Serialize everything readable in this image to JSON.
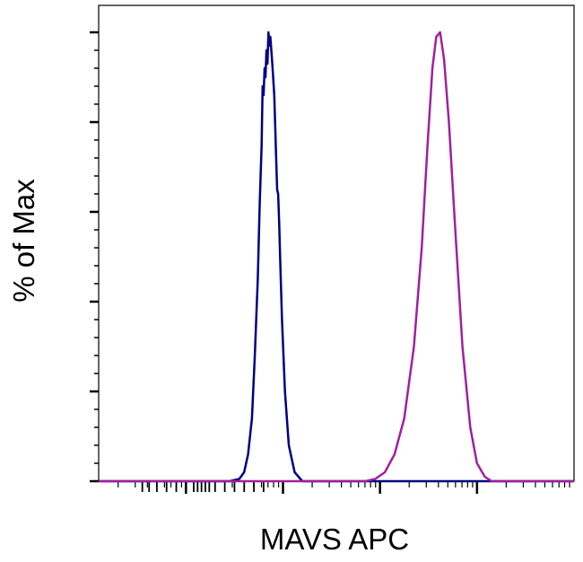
{
  "chart_data": {
    "type": "line",
    "title": "",
    "xlabel": "MAVS APC",
    "ylabel": "% of Max",
    "x_scale": "log",
    "ylim": [
      0,
      100
    ],
    "tick_labels_shown": false,
    "series": [
      {
        "color": "#000080",
        "peak_log10": 1.85,
        "points": [
          [
            0.1,
            0
          ],
          [
            1.45,
            0
          ],
          [
            1.55,
            0.5
          ],
          [
            1.6,
            2
          ],
          [
            1.64,
            6
          ],
          [
            1.68,
            14
          ],
          [
            1.71,
            28
          ],
          [
            1.74,
            45
          ],
          [
            1.76,
            62
          ],
          [
            1.78,
            75
          ],
          [
            1.79,
            88
          ],
          [
            1.8,
            86
          ],
          [
            1.81,
            92
          ],
          [
            1.82,
            90
          ],
          [
            1.83,
            96
          ],
          [
            1.84,
            93
          ],
          [
            1.85,
            100
          ],
          [
            1.86,
            97
          ],
          [
            1.87,
            99
          ],
          [
            1.89,
            93
          ],
          [
            1.91,
            86
          ],
          [
            1.93,
            72
          ],
          [
            1.94,
            65
          ],
          [
            1.95,
            64
          ],
          [
            1.96,
            58
          ],
          [
            1.97,
            50
          ],
          [
            1.99,
            36
          ],
          [
            2.02,
            20
          ],
          [
            2.06,
            8
          ],
          [
            2.12,
            2
          ],
          [
            2.2,
            0
          ],
          [
            5.0,
            0
          ]
        ]
      },
      {
        "color": "#A020A0",
        "peak_log10": 3.6,
        "points": [
          [
            0.1,
            0
          ],
          [
            2.85,
            0
          ],
          [
            2.95,
            0.5
          ],
          [
            3.05,
            2
          ],
          [
            3.15,
            6
          ],
          [
            3.25,
            14
          ],
          [
            3.35,
            30
          ],
          [
            3.43,
            52
          ],
          [
            3.49,
            75
          ],
          [
            3.54,
            92
          ],
          [
            3.58,
            99
          ],
          [
            3.62,
            100
          ],
          [
            3.66,
            94
          ],
          [
            3.71,
            80
          ],
          [
            3.77,
            58
          ],
          [
            3.85,
            30
          ],
          [
            3.93,
            12
          ],
          [
            4.0,
            4
          ],
          [
            4.08,
            1
          ],
          [
            4.15,
            0
          ],
          [
            5.0,
            0
          ]
        ]
      }
    ]
  }
}
